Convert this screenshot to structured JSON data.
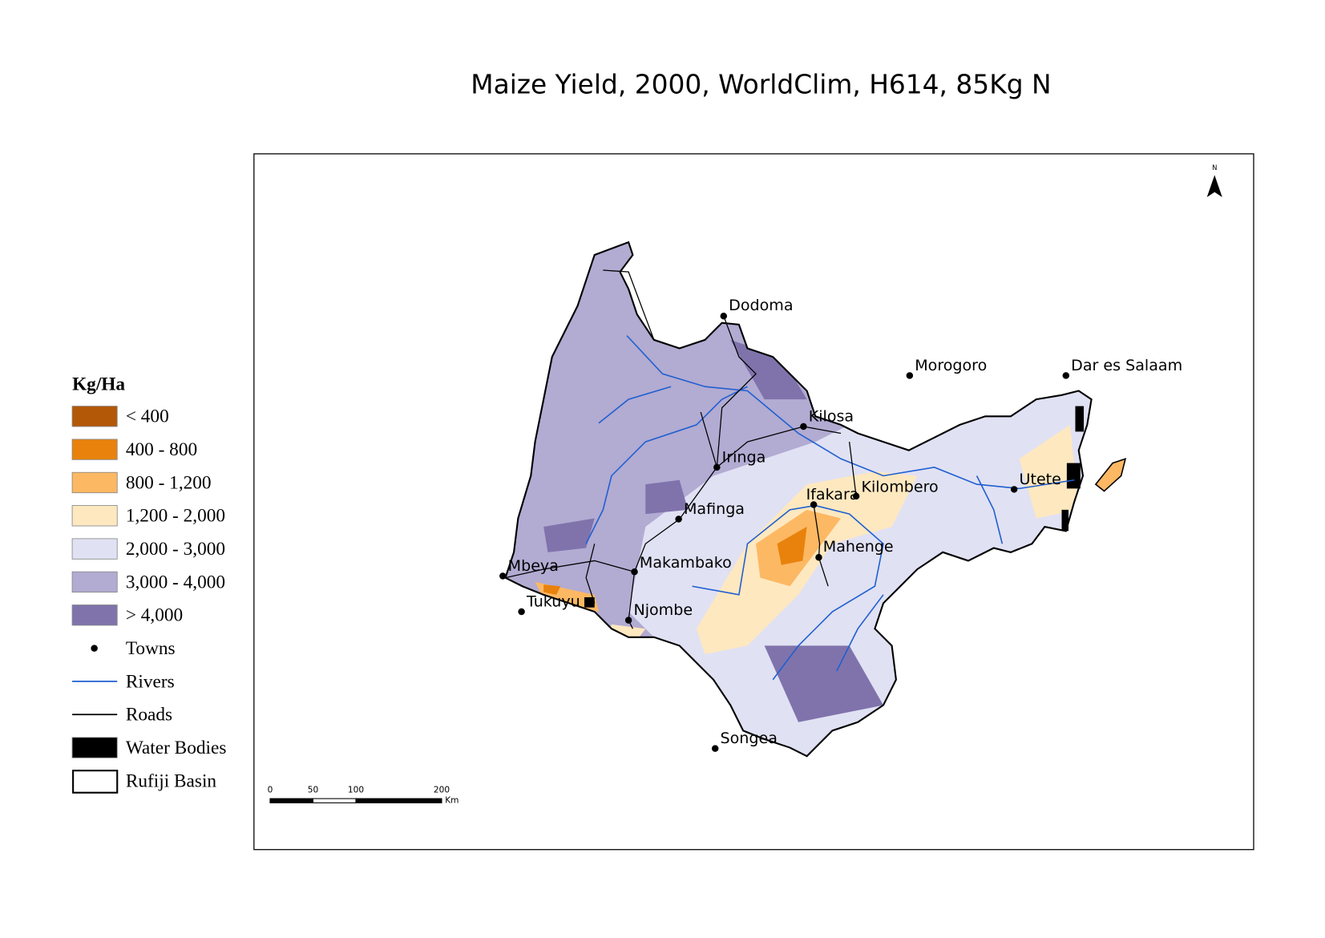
{
  "title": "Maize Yield, 2000, WorldClim, H614, 85Kg N",
  "legend": {
    "title": "Kg/Ha",
    "items": [
      {
        "label": "< 400",
        "color": "#b35806",
        "symbol": "box"
      },
      {
        "label": "400 - 800",
        "color": "#e8820c",
        "symbol": "box"
      },
      {
        "label": "800 - 1,200",
        "color": "#fdb863",
        "symbol": "box"
      },
      {
        "label": "1,200 - 2,000",
        "color": "#fee8c0",
        "symbol": "box"
      },
      {
        "label": "2,000 - 3,000",
        "color": "#e0e1f3",
        "symbol": "box"
      },
      {
        "label": "3,000 - 4,000",
        "color": "#b2abd2",
        "symbol": "box"
      },
      {
        "label": "> 4,000",
        "color": "#8073ac",
        "symbol": "box"
      },
      {
        "label": "Towns",
        "color": "#000000",
        "symbol": "dot"
      },
      {
        "label": "Rivers",
        "color": "#1f5fd0",
        "symbol": "line"
      },
      {
        "label": "Roads",
        "color": "#000000",
        "symbol": "line"
      },
      {
        "label": "Water Bodies",
        "color": "#000000",
        "symbol": "box"
      },
      {
        "label": "Rufiji Basin",
        "color": "#000000",
        "symbol": "outline"
      }
    ]
  },
  "towns": [
    "Dodoma",
    "Morogoro",
    "Dar es Salaam",
    "Kilosa",
    "Iringa",
    "Ifakara",
    "Kilombero",
    "Utete",
    "Mafinga",
    "Mahenge",
    "Makambako",
    "Mbeya",
    "Tukuyu",
    "Njombe",
    "Songea"
  ],
  "scale_bar": {
    "ticks": [
      0,
      50,
      100,
      200
    ],
    "unit": "Km"
  },
  "north": "N"
}
